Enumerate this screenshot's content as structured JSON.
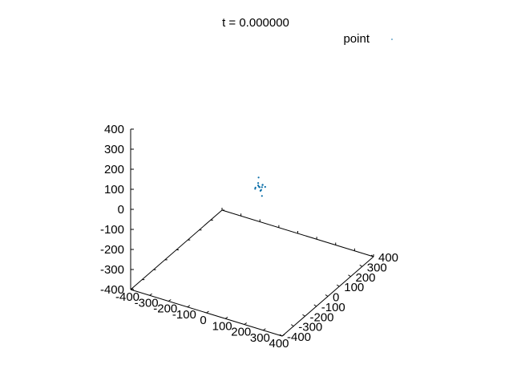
{
  "chart_data": {
    "type": "scatter",
    "projection": "3d",
    "title": "t = 0.000000",
    "legend": {
      "label": "point",
      "position": "top-right"
    },
    "series": [
      {
        "name": "point",
        "color": "#0a6ea8",
        "points": [
          {
            "x": 40,
            "y": 0,
            "z": 40
          },
          {
            "x": 30,
            "y": 10,
            "z": 35
          },
          {
            "x": 50,
            "y": -10,
            "z": 30
          },
          {
            "x": 20,
            "y": 20,
            "z": 45
          },
          {
            "x": 45,
            "y": 5,
            "z": 25
          },
          {
            "x": 35,
            "y": -5,
            "z": 50
          },
          {
            "x": 60,
            "y": 15,
            "z": 40
          },
          {
            "x": 25,
            "y": -15,
            "z": 35
          },
          {
            "x": 55,
            "y": 0,
            "z": 55
          },
          {
            "x": 40,
            "y": 20,
            "z": 30
          },
          {
            "x": 30,
            "y": -20,
            "z": 45
          },
          {
            "x": 50,
            "y": 10,
            "z": 50
          },
          {
            "x": 10,
            "y": 40,
            "z": 60
          },
          {
            "x": 70,
            "y": -30,
            "z": 20
          }
        ]
      }
    ],
    "xlim": [
      -400,
      400
    ],
    "ylim": [
      -400,
      400
    ],
    "zlim": [
      -400,
      400
    ],
    "xticks": [
      -400,
      -300,
      -200,
      -100,
      0,
      100,
      200,
      300,
      400
    ],
    "yticks": [
      -400,
      -300,
      -200,
      -100,
      0,
      100,
      200,
      300,
      400
    ],
    "zticks": [
      -400,
      -300,
      -200,
      -100,
      0,
      100,
      200,
      300,
      400
    ]
  }
}
